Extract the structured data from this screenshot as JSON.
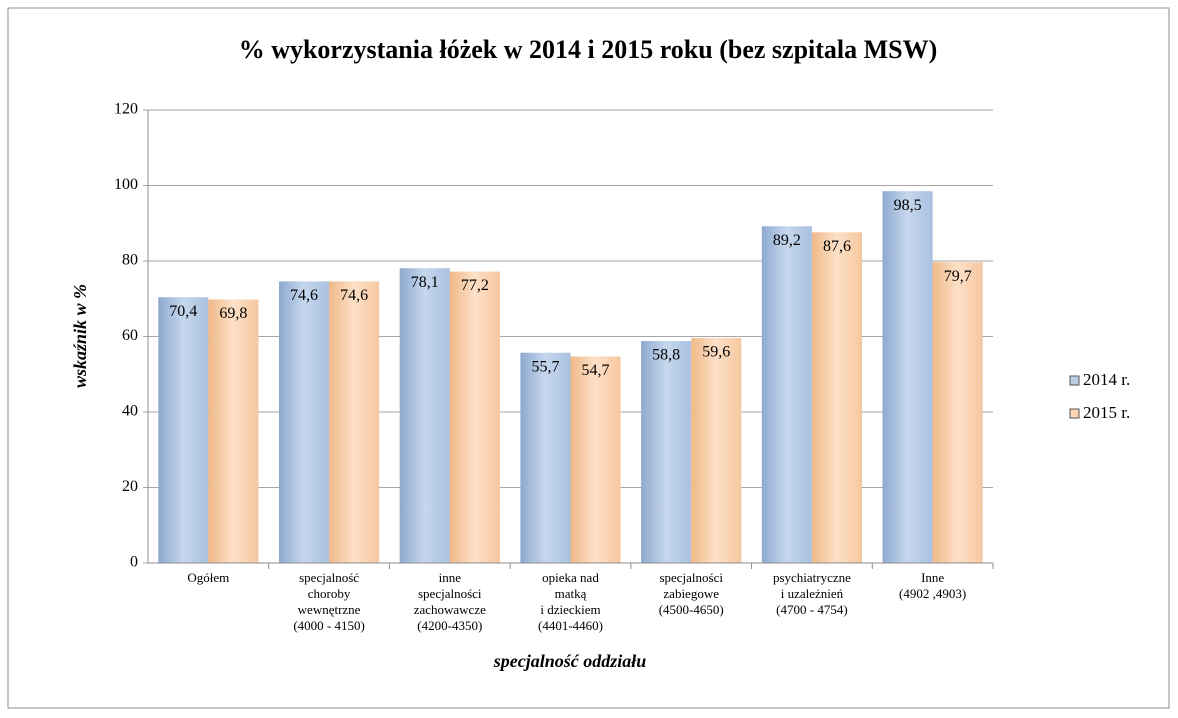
{
  "chart_data": {
    "type": "bar",
    "title": "% wykorzystania łóżek w 2014 i  2015 roku (bez szpitala MSW)",
    "ylabel": "wskaźnik w %",
    "xlabel": "specjalność oddziału",
    "categories": [
      "Ogółem",
      "specjalność\nchoroby\nwewnętrzne\n(4000 - 4150)",
      "inne\nspecjalności\nzachowawcze\n(4200-4350)",
      "opieka nad\nmatką\ni dzieckiem\n(4401-4460)",
      "specjalności\nzabiegowe\n(4500-4650)",
      "psychiatryczne\ni uzależnień\n(4700 - 4754)",
      "Inne\n(4902 ,4903)"
    ],
    "series": [
      {
        "name": "2014 r.",
        "color": "#b9cde5",
        "values": [
          70.4,
          74.6,
          78.1,
          55.7,
          58.8,
          89.2,
          98.5
        ],
        "value_labels": [
          "70,4",
          "74,6",
          "78,1",
          "55,7",
          "58,8",
          "89,2",
          "98,5"
        ]
      },
      {
        "name": "2015 r.",
        "color": "#fcd5b5",
        "values": [
          69.8,
          74.6,
          77.2,
          54.7,
          59.6,
          87.6,
          79.7
        ],
        "value_labels": [
          "69,8",
          "74,6",
          "77,2",
          "54,7",
          "59,6",
          "87,6",
          "79,7"
        ]
      }
    ],
    "ylim": [
      0,
      120
    ],
    "yticks": [
      0,
      20,
      40,
      60,
      80,
      100,
      120
    ],
    "grid": true,
    "legend": "right"
  }
}
